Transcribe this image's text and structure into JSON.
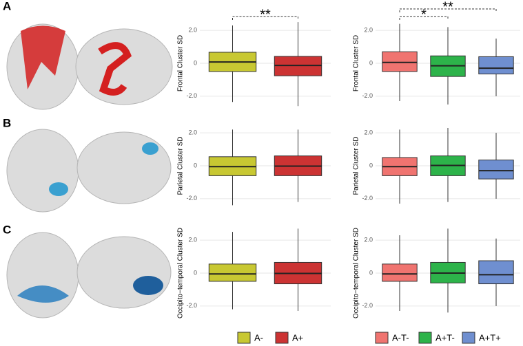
{
  "panels": [
    "A",
    "B",
    "C"
  ],
  "chart_data": [
    {
      "type": "box",
      "ylabel": "Frontal Cluster SD",
      "categories": [
        "A-",
        "A+"
      ],
      "colors": [
        "#c8c832",
        "#cc3333"
      ],
      "min": [
        -2.35,
        -2.6
      ],
      "q1": [
        -0.5,
        -0.76
      ],
      "median": [
        0.08,
        -0.13
      ],
      "q3": [
        0.67,
        0.42
      ],
      "max": [
        2.3,
        2.5
      ],
      "ylim": [
        -2.8,
        2.8
      ],
      "yticks": [
        {
          "value": -2,
          "label": "-2.0"
        },
        0,
        {
          "value": 2,
          "label": "2.0"
        }
      ],
      "grid": true,
      "annotations": [
        {
          "text": "**",
          "from": 0,
          "to": 1
        }
      ]
    },
    {
      "type": "box",
      "ylabel": "Frontal Cluster SD",
      "categories": [
        "A-T-",
        "A+T-",
        "A+T+"
      ],
      "colors": [
        "#f07470",
        "#2db34a",
        "#6f8fd0"
      ],
      "min": [
        -2.3,
        -2.5,
        -2.0
      ],
      "q1": [
        -0.5,
        -0.8,
        -0.65
      ],
      "median": [
        0.05,
        -0.15,
        -0.3
      ],
      "q3": [
        0.7,
        0.45,
        0.4
      ],
      "max": [
        2.4,
        2.2,
        1.5
      ],
      "ylim": [
        -2.8,
        2.8
      ],
      "yticks": [
        {
          "value": -2,
          "label": "-2.0"
        },
        0,
        {
          "value": 2,
          "label": "2.0"
        }
      ],
      "grid": true,
      "annotations": [
        {
          "text": "*",
          "from": 0,
          "to": 1
        },
        {
          "text": "**",
          "from": 0,
          "to": 2
        }
      ]
    },
    {
      "type": "box",
      "ylabel": "Parietal Cluster SD",
      "categories": [
        "A-",
        "A+"
      ],
      "colors": [
        "#c8c832",
        "#cc3333"
      ],
      "min": [
        -2.4,
        -2.2
      ],
      "q1": [
        -0.6,
        -0.6
      ],
      "median": [
        -0.05,
        -0.02
      ],
      "q3": [
        0.55,
        0.6
      ],
      "max": [
        2.2,
        2.2
      ],
      "ylim": [
        -2.8,
        2.8
      ],
      "yticks": [
        {
          "value": -2,
          "label": "-2.0"
        },
        0,
        {
          "value": 2,
          "label": "2.0"
        }
      ],
      "grid": true
    },
    {
      "type": "box",
      "ylabel": "Parietal Cluster SD",
      "categories": [
        "A-T-",
        "A+T-",
        "A+T+"
      ],
      "colors": [
        "#f07470",
        "#2db34a",
        "#6f8fd0"
      ],
      "min": [
        -2.3,
        -2.2,
        -2.0
      ],
      "q1": [
        -0.6,
        -0.6,
        -0.8
      ],
      "median": [
        -0.05,
        0.02,
        -0.3
      ],
      "q3": [
        0.5,
        0.6,
        0.35
      ],
      "max": [
        2.2,
        2.3,
        2.0
      ],
      "ylim": [
        -2.8,
        2.8
      ],
      "yticks": [
        {
          "value": -2,
          "label": "-2.0"
        },
        0,
        {
          "value": 2,
          "label": "2.0"
        }
      ],
      "grid": true
    },
    {
      "type": "box",
      "ylabel": "Occipito−temporal Cluster SD",
      "categories": [
        "A-",
        "A+"
      ],
      "colors": [
        "#c8c832",
        "#cc3333"
      ],
      "min": [
        -2.2,
        -2.3
      ],
      "q1": [
        -0.5,
        -0.65
      ],
      "median": [
        -0.05,
        -0.02
      ],
      "q3": [
        0.55,
        0.65
      ],
      "max": [
        2.5,
        2.7
      ],
      "ylim": [
        -2.8,
        2.8
      ],
      "yticks": [
        {
          "value": -2,
          "label": "-2.0"
        },
        0,
        {
          "value": 2,
          "label": "2.0"
        }
      ],
      "grid": true,
      "legend": true
    },
    {
      "type": "box",
      "ylabel": "Occipito−temporal Cluster SD",
      "categories": [
        "A-T-",
        "A+T-",
        "A+T+"
      ],
      "colors": [
        "#f07470",
        "#2db34a",
        "#6f8fd0"
      ],
      "min": [
        -2.3,
        -2.4,
        -2.0
      ],
      "q1": [
        -0.5,
        -0.6,
        -0.65
      ],
      "median": [
        -0.05,
        0,
        -0.1
      ],
      "q3": [
        0.55,
        0.65,
        0.75
      ],
      "max": [
        2.3,
        2.7,
        2.1
      ],
      "ylim": [
        -2.8,
        2.8
      ],
      "yticks": [
        {
          "value": -2,
          "label": "-2.0"
        },
        0,
        {
          "value": 2,
          "label": "2.0"
        }
      ],
      "grid": true,
      "legend": true
    }
  ]
}
